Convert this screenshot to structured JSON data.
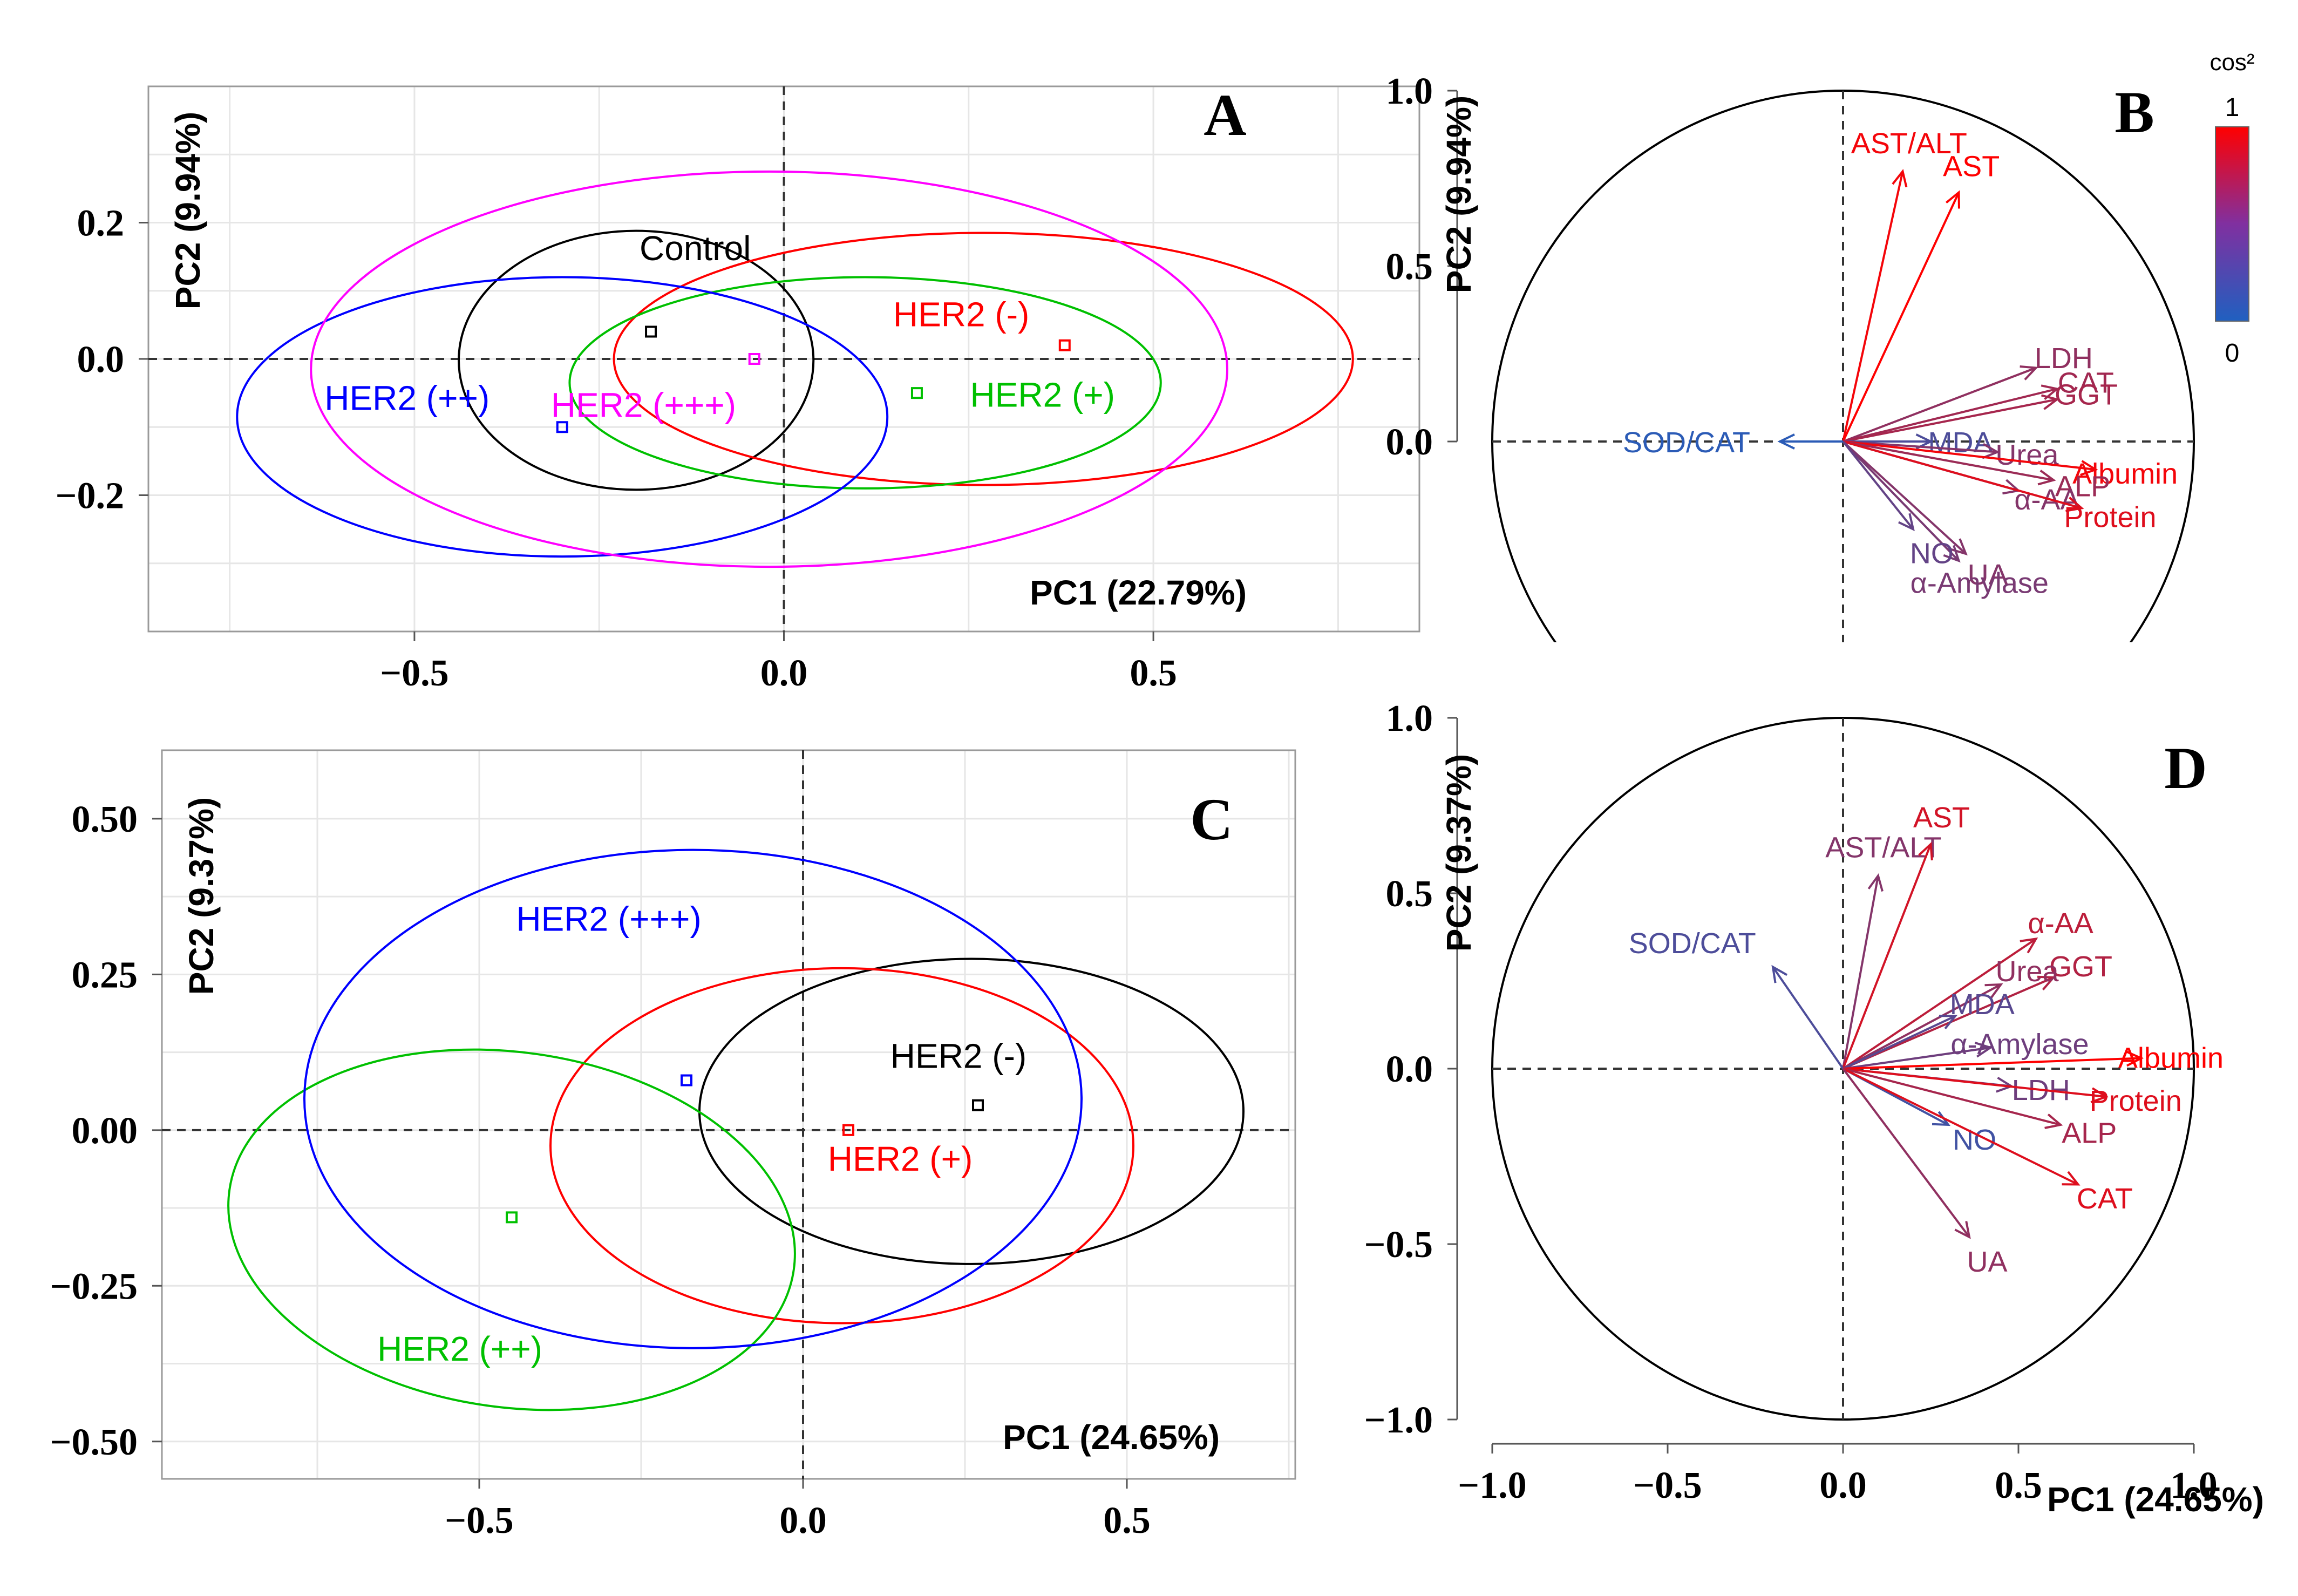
{
  "chart_data": [
    {
      "panel": "A",
      "type": "scatter",
      "xlabel": "PC1 (22.79%)",
      "ylabel": "PC2 (9.94%)",
      "xlim": [
        -0.86,
        0.86
      ],
      "ylim": [
        -0.4,
        0.4
      ],
      "xticks": [
        {
          "v": -0.5,
          "label": "−0.5"
        },
        {
          "v": 0.0,
          "label": "0.0"
        },
        {
          "v": 0.5,
          "label": "0.5"
        }
      ],
      "yticks": [
        {
          "v": 0.2,
          "label": "0.2"
        },
        {
          "v": 0.0,
          "label": "0.0"
        },
        {
          "v": -0.2,
          "label": "−0.2"
        }
      ],
      "grid": true,
      "groups": [
        {
          "name": "Control",
          "color": "#000000",
          "center": [
            -0.18,
            0.04
          ],
          "ellipse": {
            "cx": -0.2,
            "cy": -0.002,
            "rx": 0.24,
            "ry": 0.19,
            "angle": 0
          },
          "label_at": [
            -0.12,
            0.145
          ]
        },
        {
          "name": "HER2 (-)",
          "color": "#ff0000",
          "center": [
            0.38,
            0.02
          ],
          "ellipse": {
            "cx": 0.27,
            "cy": 0.0,
            "rx": 0.5,
            "ry": 0.185,
            "angle": 0
          },
          "label_at": [
            0.24,
            0.048
          ]
        },
        {
          "name": "HER2 (+)",
          "color": "#00c000",
          "center": [
            0.18,
            -0.05
          ],
          "ellipse": {
            "cx": 0.11,
            "cy": -0.035,
            "rx": 0.4,
            "ry": 0.155,
            "angle": 0
          },
          "label_at": [
            0.35,
            -0.07
          ]
        },
        {
          "name": "HER2 (++)",
          "color": "#0000ff",
          "center": [
            -0.3,
            -0.1
          ],
          "ellipse": {
            "cx": -0.3,
            "cy": -0.085,
            "rx": 0.44,
            "ry": 0.205,
            "angle": 0
          },
          "label_at": [
            -0.51,
            -0.075
          ]
        },
        {
          "name": "HER2 (+++)",
          "color": "#ff00ff",
          "center": [
            -0.04,
            0.0
          ],
          "ellipse": {
            "cx": -0.02,
            "cy": -0.015,
            "rx": 0.62,
            "ry": 0.29,
            "angle": 0
          },
          "label_at": [
            -0.19,
            -0.085
          ]
        }
      ]
    },
    {
      "panel": "B",
      "type": "scatter",
      "subtype": "correlation-circle",
      "xlabel": "",
      "ylabel": "PC2 (9.94%)",
      "xlim": [
        -1.1,
        1.1
      ],
      "ylim": [
        -0.45,
        1.12
      ],
      "yticks": [
        {
          "v": 1.0,
          "label": "1.0"
        },
        {
          "v": 0.5,
          "label": "0.5"
        },
        {
          "v": 0.0,
          "label": "0.0"
        }
      ],
      "legend": {
        "title": "cos²",
        "max_label": "1",
        "min_label": "0",
        "low_color": "#2060c0",
        "high_color": "#ff0000",
        "placement": "top-right"
      },
      "variables": [
        {
          "name": "AST/ALT",
          "x": 0.17,
          "y": 0.77,
          "cos2": 0.95
        },
        {
          "name": "AST",
          "x": 0.33,
          "y": 0.71,
          "cos2": 1.0
        },
        {
          "name": "LDH",
          "x": 0.55,
          "y": 0.21,
          "cos2": 0.5
        },
        {
          "name": "CAT",
          "x": 0.61,
          "y": 0.15,
          "cos2": 0.58
        },
        {
          "name": "GGT",
          "x": 0.61,
          "y": 0.12,
          "cos2": 0.6
        },
        {
          "name": "MDA",
          "x": 0.25,
          "y": 0.0,
          "cos2": 0.2
        },
        {
          "name": "Urea",
          "x": 0.44,
          "y": -0.03,
          "cos2": 0.45
        },
        {
          "name": "Albumin",
          "x": 0.72,
          "y": -0.08,
          "cos2": 0.95
        },
        {
          "name": "ALP",
          "x": 0.6,
          "y": -0.11,
          "cos2": 0.55
        },
        {
          "name": "α-AA",
          "x": 0.5,
          "y": -0.14,
          "cos2": 0.45
        },
        {
          "name": "Protein",
          "x": 0.68,
          "y": -0.19,
          "cos2": 0.85
        },
        {
          "name": "UA",
          "x": 0.35,
          "y": -0.32,
          "cos2": 0.45
        },
        {
          "name": "α-Amylase",
          "x": 0.33,
          "y": -0.34,
          "cos2": 0.4
        },
        {
          "name": "NO",
          "x": 0.2,
          "y": -0.25,
          "cos2": 0.3
        },
        {
          "name": "SOD/CAT",
          "x": -0.18,
          "y": 0.0,
          "cos2": 0.05
        }
      ]
    },
    {
      "panel": "C",
      "type": "scatter",
      "xlabel": "PC1 (24.65%)",
      "ylabel": "PC2 (9.37%)",
      "xlim": [
        -0.99,
        0.76
      ],
      "ylim": [
        -0.56,
        0.61
      ],
      "xticks": [
        {
          "v": -0.5,
          "label": "−0.5"
        },
        {
          "v": 0.0,
          "label": "0.0"
        },
        {
          "v": 0.5,
          "label": "0.5"
        }
      ],
      "yticks": [
        {
          "v": 0.5,
          "label": "0.50"
        },
        {
          "v": 0.25,
          "label": "0.25"
        },
        {
          "v": 0.0,
          "label": "0.00"
        },
        {
          "v": -0.25,
          "label": "−0.25"
        },
        {
          "v": -0.5,
          "label": "−0.50"
        }
      ],
      "grid": true,
      "groups": [
        {
          "name": "HER2 (-)",
          "color": "#000000",
          "center": [
            0.27,
            0.04
          ],
          "ellipse": {
            "cx": 0.26,
            "cy": 0.03,
            "rx": 0.42,
            "ry": 0.245,
            "angle": 0
          },
          "label_at": [
            0.24,
            0.1
          ]
        },
        {
          "name": "HER2 (+)",
          "color": "#ff0000",
          "center": [
            0.07,
            0.0
          ],
          "ellipse": {
            "cx": 0.06,
            "cy": -0.025,
            "rx": 0.45,
            "ry": 0.285,
            "angle": 0
          },
          "label_at": [
            0.15,
            -0.065
          ]
        },
        {
          "name": "HER2 (++)",
          "color": "#00c000",
          "center": [
            -0.45,
            -0.14
          ],
          "ellipse": {
            "cx": -0.45,
            "cy": -0.16,
            "rx": 0.44,
            "ry": 0.285,
            "angle": 8
          },
          "label_at": [
            -0.53,
            -0.37
          ]
        },
        {
          "name": "HER2 (+++)",
          "color": "#0000ff",
          "center": [
            -0.18,
            0.08
          ],
          "ellipse": {
            "cx": -0.17,
            "cy": 0.05,
            "rx": 0.6,
            "ry": 0.4,
            "angle": 0
          },
          "label_at": [
            -0.3,
            0.32
          ]
        }
      ]
    },
    {
      "panel": "D",
      "type": "scatter",
      "subtype": "correlation-circle",
      "xlabel": "PC1 (24.65%)",
      "ylabel": "PC2 (9.37%)",
      "xlim": [
        -1.1,
        1.1
      ],
      "ylim": [
        -1.1,
        1.1
      ],
      "xticks": [
        {
          "v": -1.0,
          "label": "−1.0"
        },
        {
          "v": -0.5,
          "label": "−0.5"
        },
        {
          "v": 0.0,
          "label": "0.0"
        },
        {
          "v": 0.5,
          "label": "0.5"
        },
        {
          "v": 1.0,
          "label": "1.0"
        }
      ],
      "yticks": [
        {
          "v": 1.0,
          "label": "1.0"
        },
        {
          "v": 0.5,
          "label": "0.5"
        },
        {
          "v": 0.0,
          "label": "0.0"
        },
        {
          "v": -0.5,
          "label": "−0.5"
        },
        {
          "v": -1.0,
          "label": "−1.0"
        }
      ],
      "variables": [
        {
          "name": "AST/ALT",
          "x": 0.1,
          "y": 0.55,
          "cos2": 0.45
        },
        {
          "name": "AST",
          "x": 0.25,
          "y": 0.64,
          "cos2": 0.8
        },
        {
          "name": "SOD/CAT",
          "x": -0.2,
          "y": 0.29,
          "cos2": 0.2
        },
        {
          "name": "α-AA",
          "x": 0.55,
          "y": 0.37,
          "cos2": 0.7
        },
        {
          "name": "GGT",
          "x": 0.6,
          "y": 0.26,
          "cos2": 0.65
        },
        {
          "name": "Urea",
          "x": 0.45,
          "y": 0.24,
          "cos2": 0.5
        },
        {
          "name": "MDA",
          "x": 0.32,
          "y": 0.15,
          "cos2": 0.25
        },
        {
          "name": "α-Amylase",
          "x": 0.42,
          "y": 0.06,
          "cos2": 0.35
        },
        {
          "name": "Albumin",
          "x": 0.85,
          "y": 0.03,
          "cos2": 1.0
        },
        {
          "name": "LDH",
          "x": 0.48,
          "y": -0.05,
          "cos2": 0.35
        },
        {
          "name": "Protein",
          "x": 0.75,
          "y": -0.08,
          "cos2": 0.85
        },
        {
          "name": "NO",
          "x": 0.3,
          "y": -0.16,
          "cos2": 0.15
        },
        {
          "name": "ALP",
          "x": 0.62,
          "y": -0.16,
          "cos2": 0.6
        },
        {
          "name": "CAT",
          "x": 0.67,
          "y": -0.33,
          "cos2": 0.85
        },
        {
          "name": "UA",
          "x": 0.36,
          "y": -0.48,
          "cos2": 0.5
        }
      ]
    }
  ]
}
